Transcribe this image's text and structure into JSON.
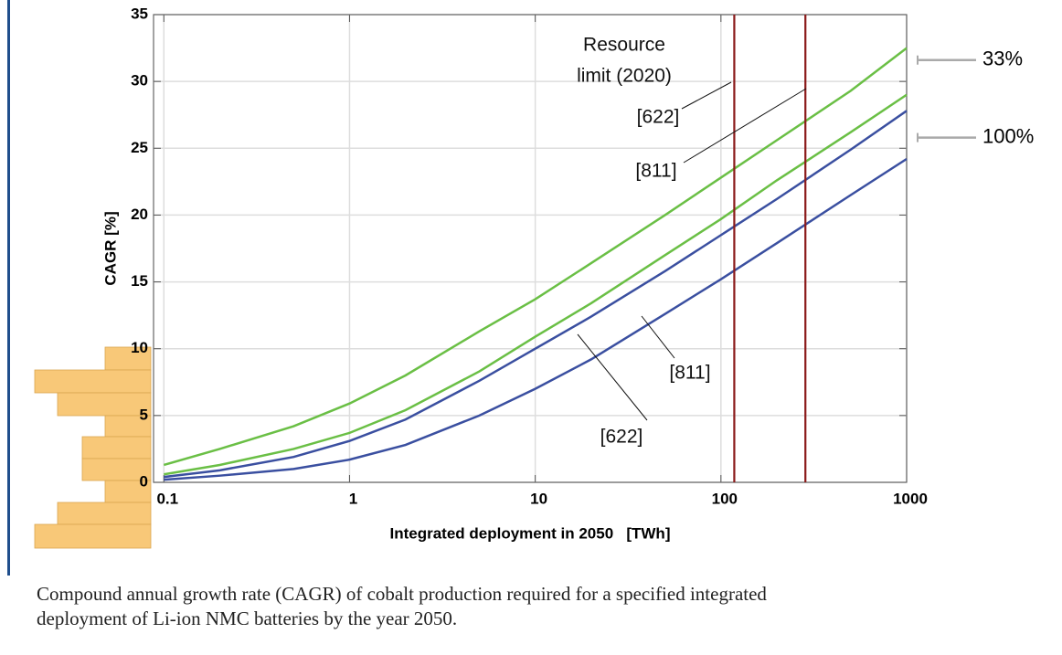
{
  "chart_data": {
    "type": "line",
    "xlabel": "Integrated deployment in 2050   [TWh]",
    "ylabel": "CAGR [%]",
    "log_x": true,
    "grid": true,
    "x": [
      0.1,
      0.2,
      0.5,
      1,
      2,
      5,
      10,
      20,
      50,
      100,
      200,
      500,
      1000
    ],
    "series": [
      {
        "color": "#6abf45",
        "values": [
          1.3,
          2.5,
          4.2,
          5.9,
          8.0,
          11.3,
          13.7,
          16.4,
          20.0,
          22.8,
          25.6,
          29.3,
          32.5
        ]
      },
      {
        "color": "#6abf45",
        "values": [
          0.6,
          1.3,
          2.5,
          3.7,
          5.4,
          8.3,
          10.9,
          13.4,
          17.0,
          19.7,
          22.6,
          26.2,
          29.0
        ]
      },
      {
        "color": "#3a4fa0",
        "values": [
          0.4,
          0.9,
          1.9,
          3.1,
          4.7,
          7.6,
          10.0,
          12.4,
          15.8,
          18.5,
          21.2,
          24.9,
          27.8
        ]
      },
      {
        "color": "#3a4fa0",
        "values": [
          0.2,
          0.5,
          1.0,
          1.7,
          2.8,
          5.0,
          7.0,
          9.2,
          12.6,
          15.2,
          17.9,
          21.5,
          24.2
        ]
      }
    ],
    "vlines": [
      {
        "x": 118,
        "color": "#8b1a1a"
      },
      {
        "x": 285,
        "color": "#8b1a1a"
      }
    ],
    "annotations": [
      "Resource",
      "limit (2020)",
      "[622]",
      "[811]",
      "[811]",
      "[622]"
    ],
    "right_markers": [
      {
        "value": 31.6,
        "label": "33%"
      },
      {
        "value": 25.8,
        "label": "100%"
      }
    ],
    "xlim": [
      0.088,
      1000
    ],
    "xticks": [
      0.1,
      1,
      10,
      100,
      1000
    ],
    "ylim": [
      0,
      35
    ],
    "yticks": [
      0,
      5,
      10,
      15,
      20,
      25,
      30,
      35
    ]
  },
  "caption": "Compound annual growth rate (CAGR) of cobalt production required for a specified integrated deployment of Li-ion NMC batteries by the year 2050."
}
